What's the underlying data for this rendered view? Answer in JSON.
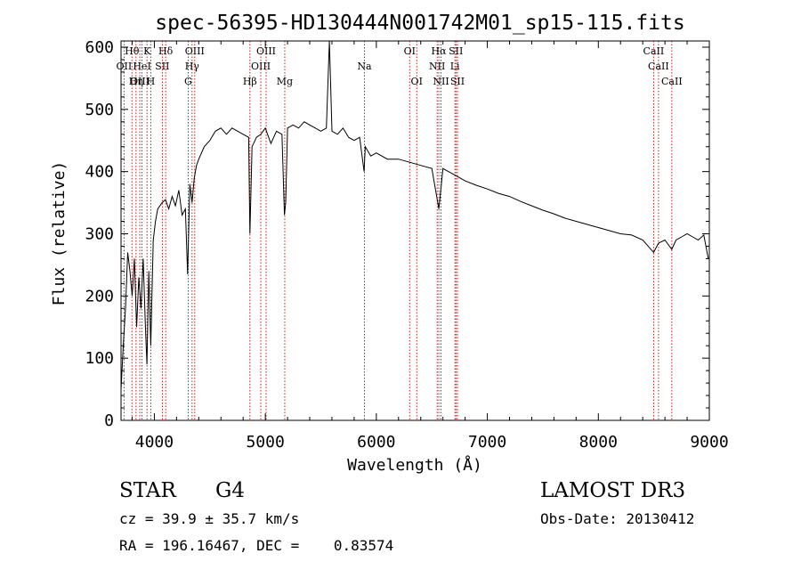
{
  "chart_data": {
    "type": "line",
    "title": "spec-56395-HD130444N001742M01_sp15-115.fits",
    "xlabel": "Wavelength (Å)",
    "ylabel": "Flux (relative)",
    "xlim": [
      3700,
      9000
    ],
    "ylim": [
      0,
      610
    ],
    "x_ticks": [
      4000,
      5000,
      6000,
      7000,
      8000,
      9000
    ],
    "y_ticks": [
      0,
      100,
      200,
      300,
      400,
      500,
      600
    ],
    "grid": false,
    "series": [
      {
        "name": "",
        "x": [
          3700,
          3720,
          3740,
          3760,
          3780,
          3800,
          3820,
          3840,
          3860,
          3880,
          3900,
          3920,
          3933,
          3950,
          3968,
          3990,
          4010,
          4030,
          4050,
          4070,
          4100,
          4130,
          4160,
          4190,
          4220,
          4250,
          4280,
          4300,
          4320,
          4340,
          4360,
          4380,
          4400,
          4450,
          4500,
          4550,
          4600,
          4650,
          4700,
          4750,
          4800,
          4850,
          4861,
          4880,
          4920,
          4960,
          5000,
          5050,
          5100,
          5150,
          5172,
          5183,
          5200,
          5250,
          5300,
          5350,
          5400,
          5450,
          5500,
          5550,
          5577,
          5600,
          5650,
          5700,
          5750,
          5800,
          5850,
          5890,
          5900,
          5950,
          6000,
          6100,
          6200,
          6300,
          6400,
          6500,
          6563,
          6600,
          6700,
          6800,
          6900,
          7000,
          7100,
          7200,
          7300,
          7400,
          7500,
          7600,
          7700,
          7800,
          7900,
          8000,
          8100,
          8200,
          8300,
          8400,
          8498,
          8542,
          8600,
          8662,
          8700,
          8750,
          8800,
          8850,
          8900,
          8950,
          8990
        ],
        "y": [
          50,
          120,
          180,
          270,
          240,
          200,
          260,
          150,
          230,
          180,
          260,
          150,
          90,
          240,
          120,
          290,
          320,
          340,
          345,
          350,
          355,
          340,
          360,
          345,
          370,
          330,
          340,
          235,
          380,
          350,
          390,
          410,
          420,
          440,
          450,
          465,
          470,
          460,
          470,
          465,
          460,
          455,
          300,
          440,
          455,
          460,
          470,
          445,
          465,
          460,
          330,
          350,
          470,
          475,
          470,
          480,
          475,
          470,
          465,
          470,
          610,
          465,
          460,
          470,
          455,
          450,
          455,
          400,
          440,
          425,
          430,
          420,
          420,
          415,
          410,
          405,
          340,
          405,
          395,
          385,
          378,
          372,
          365,
          360,
          352,
          345,
          338,
          332,
          325,
          320,
          315,
          310,
          305,
          300,
          298,
          290,
          270,
          285,
          290,
          275,
          290,
          295,
          300,
          295,
          290,
          298,
          260
        ]
      }
    ],
    "line_markers": [
      {
        "label": "Hθ",
        "wavelength": 3798,
        "row": 0
      },
      {
        "label": "K",
        "wavelength": 3934,
        "row": 0
      },
      {
        "label": "Hδ",
        "wavelength": 4102,
        "row": 0
      },
      {
        "label": "OIII",
        "wavelength": 4364,
        "row": 0
      },
      {
        "label": "OIII",
        "wavelength": 5007,
        "row": 0
      },
      {
        "label": "OI",
        "wavelength": 6300,
        "row": 0
      },
      {
        "label": "Hα",
        "wavelength": 6563,
        "row": 0
      },
      {
        "label": "SII",
        "wavelength": 6717,
        "row": 0
      },
      {
        "label": "CaII",
        "wavelength": 8498,
        "row": 0
      },
      {
        "label": "OII",
        "wavelength": 3727,
        "row": 1
      },
      {
        "label": "HeI",
        "wavelength": 3889,
        "row": 1
      },
      {
        "label": "SII",
        "wavelength": 4072,
        "row": 1
      },
      {
        "label": "Hγ",
        "wavelength": 4340,
        "row": 1
      },
      {
        "label": "OIII",
        "wavelength": 4959,
        "row": 1
      },
      {
        "label": "Na",
        "wavelength": 5893,
        "row": 1
      },
      {
        "label": "NII",
        "wavelength": 6548,
        "row": 1
      },
      {
        "label": "Li",
        "wavelength": 6708,
        "row": 1
      },
      {
        "label": "CaII",
        "wavelength": 8542,
        "row": 1
      },
      {
        "label": "OIII",
        "wavelength": 3869,
        "row": 2
      },
      {
        "label": "Hη",
        "wavelength": 3835,
        "row": 2
      },
      {
        "label": "H",
        "wavelength": 3968,
        "row": 2
      },
      {
        "label": "G",
        "wavelength": 4305,
        "row": 2
      },
      {
        "label": "Hβ",
        "wavelength": 4861,
        "row": 2
      },
      {
        "label": "Mg",
        "wavelength": 5175,
        "row": 2
      },
      {
        "label": "OI",
        "wavelength": 6364,
        "row": 2
      },
      {
        "label": "NII",
        "wavelength": 6583,
        "row": 2
      },
      {
        "label": "SII",
        "wavelength": 6731,
        "row": 2
      },
      {
        "label": "CaII",
        "wavelength": 8662,
        "row": 2
      }
    ]
  },
  "info": {
    "object_class": "STAR",
    "subclass": "G4",
    "survey": "LAMOST DR3",
    "redshift": "cz = 39.9 ± 35.7 km/s",
    "obs_date": "Obs-Date: 20130412",
    "coords": "RA = 196.16467, DEC =    0.83574"
  },
  "colors": {
    "spectrum": "#000000",
    "marker_line": "#cc0000",
    "axis": "#000000"
  }
}
